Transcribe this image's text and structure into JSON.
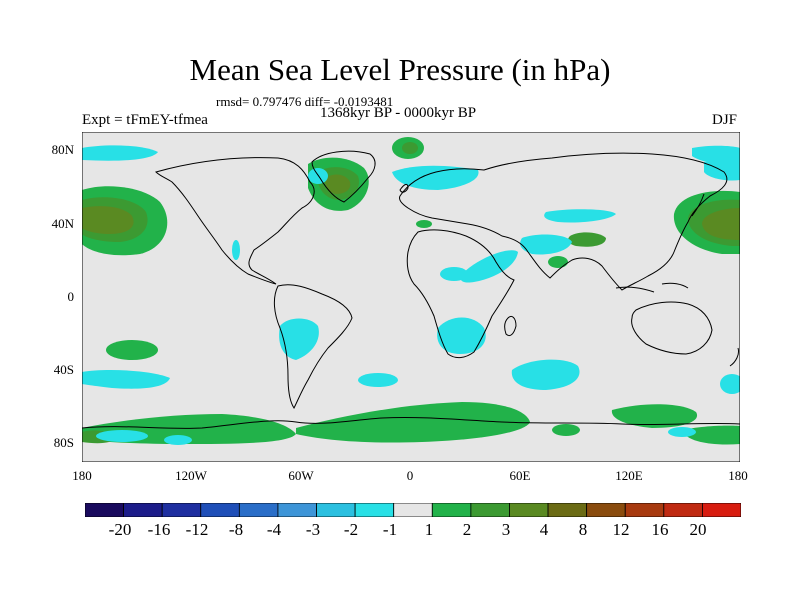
{
  "title": "Mean Sea Level Pressure (in hPa)",
  "stats": "rmsd= 0.797476 diff= -0.0193481",
  "experiment": "Expt = tFmEY-tfmea",
  "period": "1368kyr BP - 0000kyr BP",
  "season": "DJF",
  "lat_labels": [
    "80N",
    "40N",
    "0",
    "40S",
    "80S"
  ],
  "lon_labels": [
    "180",
    "120W",
    "60W",
    "0",
    "60E",
    "120E",
    "180"
  ],
  "colorbar": {
    "labels": [
      "-20",
      "-16",
      "-12",
      "-8",
      "-4",
      "-3",
      "-2",
      "-1",
      "1",
      "2",
      "3",
      "4",
      "8",
      "12",
      "16",
      "20"
    ],
    "colors": [
      "#1a0a5e",
      "#1c1c8a",
      "#1f2fa0",
      "#1f4fb8",
      "#2a6ec8",
      "#3d95d8",
      "#2cc0e0",
      "#28e0e6",
      "#e6e6e6",
      "#22b24a",
      "#3c9a32",
      "#5a8a22",
      "#6b6b14",
      "#8a4c0e",
      "#a83a10",
      "#c02a12",
      "#d81c10"
    ]
  },
  "colors": {
    "background": "#e6e6e6",
    "neg1": "#28e0e6",
    "pos1": "#22b24a",
    "pos2": "#3c9a32",
    "pos3": "#5a8a22"
  }
}
